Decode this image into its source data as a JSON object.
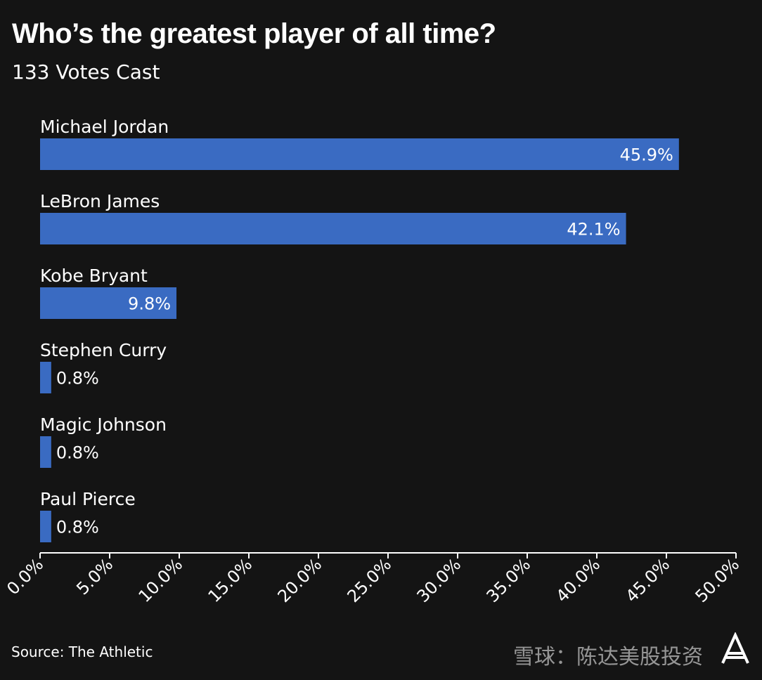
{
  "header": {
    "title": "Who’s the greatest player of all time?",
    "subtitle": "133 Votes Cast"
  },
  "footer": {
    "source": "Source: The Athletic",
    "watermark": "雪球：陈达美股投资"
  },
  "logo": {
    "text": "A",
    "icon": "athletic-logo-icon"
  },
  "colors": {
    "background": "#141414",
    "bar": "#3a6bc2",
    "text": "#ffffff",
    "axis": "#ffffff"
  },
  "chart_data": {
    "type": "bar",
    "orientation": "horizontal",
    "categories": [
      "Michael Jordan",
      "LeBron James",
      "Kobe Bryant",
      "Stephen Curry",
      "Magic Johnson",
      "Paul Pierce"
    ],
    "values": [
      45.9,
      42.1,
      9.8,
      0.8,
      0.8,
      0.8
    ],
    "value_labels": [
      "45.9%",
      "42.1%",
      "9.8%",
      "0.8%",
      "0.8%",
      "0.8%"
    ],
    "xlim": [
      0,
      50
    ],
    "xticks": [
      0,
      5,
      10,
      15,
      20,
      25,
      30,
      35,
      40,
      45,
      50
    ],
    "xtick_labels": [
      "0.0%",
      "5.0%",
      "10.0%",
      "15.0%",
      "20.0%",
      "25.0%",
      "30.0%",
      "35.0%",
      "40.0%",
      "45.0%",
      "50.0%"
    ],
    "grid": false,
    "legend": "none"
  }
}
